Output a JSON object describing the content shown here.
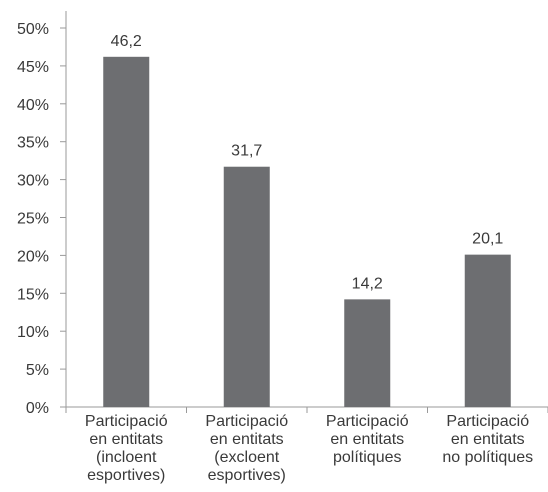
{
  "chart_data": {
    "type": "bar",
    "title": "",
    "xlabel": "",
    "ylabel": "",
    "categories": [
      [
        "Participació",
        "en entitats",
        "(incloent",
        "esportives)"
      ],
      [
        "Participació",
        "en entitats",
        "(excloent",
        "esportives)"
      ],
      [
        "Participació",
        "en entitats",
        "polítiques"
      ],
      [
        "Participació",
        "en entitats",
        "no polítiques"
      ]
    ],
    "values": [
      46.2,
      31.7,
      14.2,
      20.1
    ],
    "value_labels": [
      "46,2",
      "31,7",
      "14,2",
      "20,1"
    ],
    "ylim": [
      0,
      50
    ],
    "yticks": [
      0,
      5,
      10,
      15,
      20,
      25,
      30,
      35,
      40,
      45,
      50
    ],
    "ytick_labels": [
      "0%",
      "5%",
      "10%",
      "15%",
      "20%",
      "25%",
      "30%",
      "35%",
      "40%",
      "45%",
      "50%"
    ],
    "grid": false,
    "legend": "none",
    "bar_color": "#6d6e71",
    "axis_color": "#9a9a9a",
    "text_color": "#3a3a3a"
  }
}
